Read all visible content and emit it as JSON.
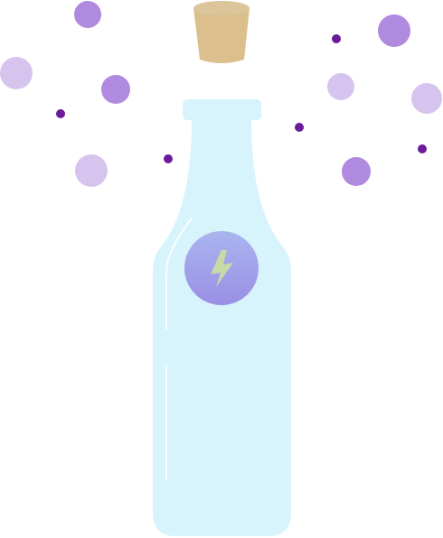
{
  "illustration": {
    "subject": "bottle-with-cork-and-bubbles",
    "icons": {
      "cork": "cork-icon",
      "bottle": "bottle-icon",
      "label": "lightning-bolt-icon",
      "bubbles": "bubble-icon"
    },
    "colors": {
      "background": "#ffffff",
      "bottle_fill": "#d7f3fc",
      "bottle_highlight": "#ffffff",
      "cork_top": "#dcc59a",
      "cork_body": "#dbbf8c",
      "label_top": "#a9b5ef",
      "label_bottom": "#9a8fe4",
      "bolt": "#c9d9a6",
      "bubble_dark": "#b08adf",
      "bubble_light": "#d7c4ee",
      "dot": "#6a1b9a"
    }
  }
}
